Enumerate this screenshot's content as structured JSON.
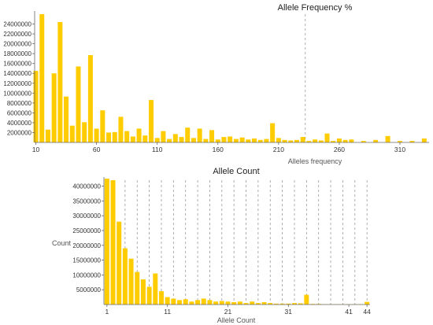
{
  "charts": [
    {
      "id": "freq",
      "type": "bar",
      "title": "Allele Frequency %",
      "xlabel": "Alleles frequency",
      "ylabel": "",
      "color": "#ffcc00",
      "refline_color": "#999999",
      "x_domain": [
        9,
        334
      ],
      "ylim": [
        0,
        26000000
      ],
      "x_ticks": [
        10,
        60,
        110,
        160,
        210,
        260,
        310
      ],
      "y_ticks": [
        2000000,
        4000000,
        6000000,
        8000000,
        10000000,
        12000000,
        14000000,
        16000000,
        18000000,
        20000000,
        22000000,
        24000000
      ],
      "y_tick_labels": [
        "2000000",
        "4000000",
        "6000000",
        "8000000",
        "10000000",
        "12000000",
        "14000000",
        "16000000",
        "18000000",
        "20000000",
        "22000000",
        "24000000"
      ],
      "ref_lines_x": [
        232
      ],
      "x": [
        10,
        15,
        20,
        25,
        30,
        35,
        40,
        45,
        50,
        55,
        60,
        65,
        70,
        75,
        80,
        85,
        90,
        95,
        100,
        105,
        110,
        115,
        120,
        125,
        130,
        135,
        140,
        145,
        150,
        155,
        160,
        165,
        170,
        175,
        180,
        185,
        190,
        195,
        200,
        205,
        210,
        215,
        220,
        225,
        230,
        235,
        240,
        245,
        250,
        255,
        260,
        265,
        270,
        280,
        290,
        300,
        310,
        320,
        330
      ],
      "values": [
        14500000,
        26000000,
        2600000,
        14000000,
        24400000,
        9300000,
        3400000,
        15400000,
        4100000,
        17700000,
        2800000,
        6500000,
        2000000,
        2100000,
        5200000,
        2300000,
        1200000,
        2800000,
        1400000,
        8600000,
        900000,
        2300000,
        700000,
        1700000,
        1100000,
        3000000,
        900000,
        2800000,
        700000,
        2500000,
        600000,
        1100000,
        1200000,
        700000,
        1000000,
        600000,
        800000,
        500000,
        700000,
        3900000,
        900000,
        500000,
        400000,
        500000,
        1100000,
        300000,
        600000,
        400000,
        1800000,
        300000,
        800000,
        500000,
        600000,
        300000,
        500000,
        1300000,
        300000,
        300000,
        800000
      ]
    },
    {
      "id": "count",
      "type": "bar",
      "title": "Allele Count",
      "xlabel": "Allele Count",
      "ylabel": "Count",
      "color": "#ffcc00",
      "refline_color": "#999999",
      "x_domain": [
        0.5,
        44.5
      ],
      "ylim": [
        0,
        42000000
      ],
      "x_ticks": [
        1,
        11,
        21,
        31,
        41,
        44
      ],
      "y_ticks": [
        5000000,
        10000000,
        15000000,
        20000000,
        25000000,
        30000000,
        35000000,
        40000000
      ],
      "y_tick_labels": [
        "5000000",
        "10000000",
        "15000000",
        "20000000",
        "25000000",
        "30000000",
        "35000000",
        "40000000"
      ],
      "ref_lines_x": [
        4,
        6,
        8,
        10,
        12,
        14,
        16,
        18,
        20,
        22,
        24,
        26,
        28,
        30,
        32,
        34,
        36,
        38,
        40,
        42,
        44
      ],
      "x": [
        1,
        2,
        3,
        4,
        5,
        6,
        7,
        8,
        9,
        10,
        11,
        12,
        13,
        14,
        15,
        16,
        17,
        18,
        19,
        20,
        21,
        22,
        23,
        24,
        25,
        26,
        27,
        28,
        29,
        30,
        31,
        32,
        33,
        34,
        35,
        36,
        37,
        38,
        39,
        40,
        41,
        42,
        43,
        44
      ],
      "values": [
        43000000,
        42000000,
        28000000,
        19000000,
        15500000,
        11000000,
        8500000,
        6000000,
        10500000,
        4500000,
        2500000,
        2000000,
        1500000,
        1800000,
        1000000,
        1500000,
        2000000,
        1500000,
        1000000,
        1200000,
        1000000,
        800000,
        1000000,
        500000,
        1000000,
        500000,
        800000,
        500000,
        300000,
        300000,
        300000,
        500000,
        400000,
        3300000,
        200000,
        200000,
        100000,
        100000,
        100000,
        100000,
        100000,
        100000,
        100000,
        900000
      ]
    }
  ]
}
